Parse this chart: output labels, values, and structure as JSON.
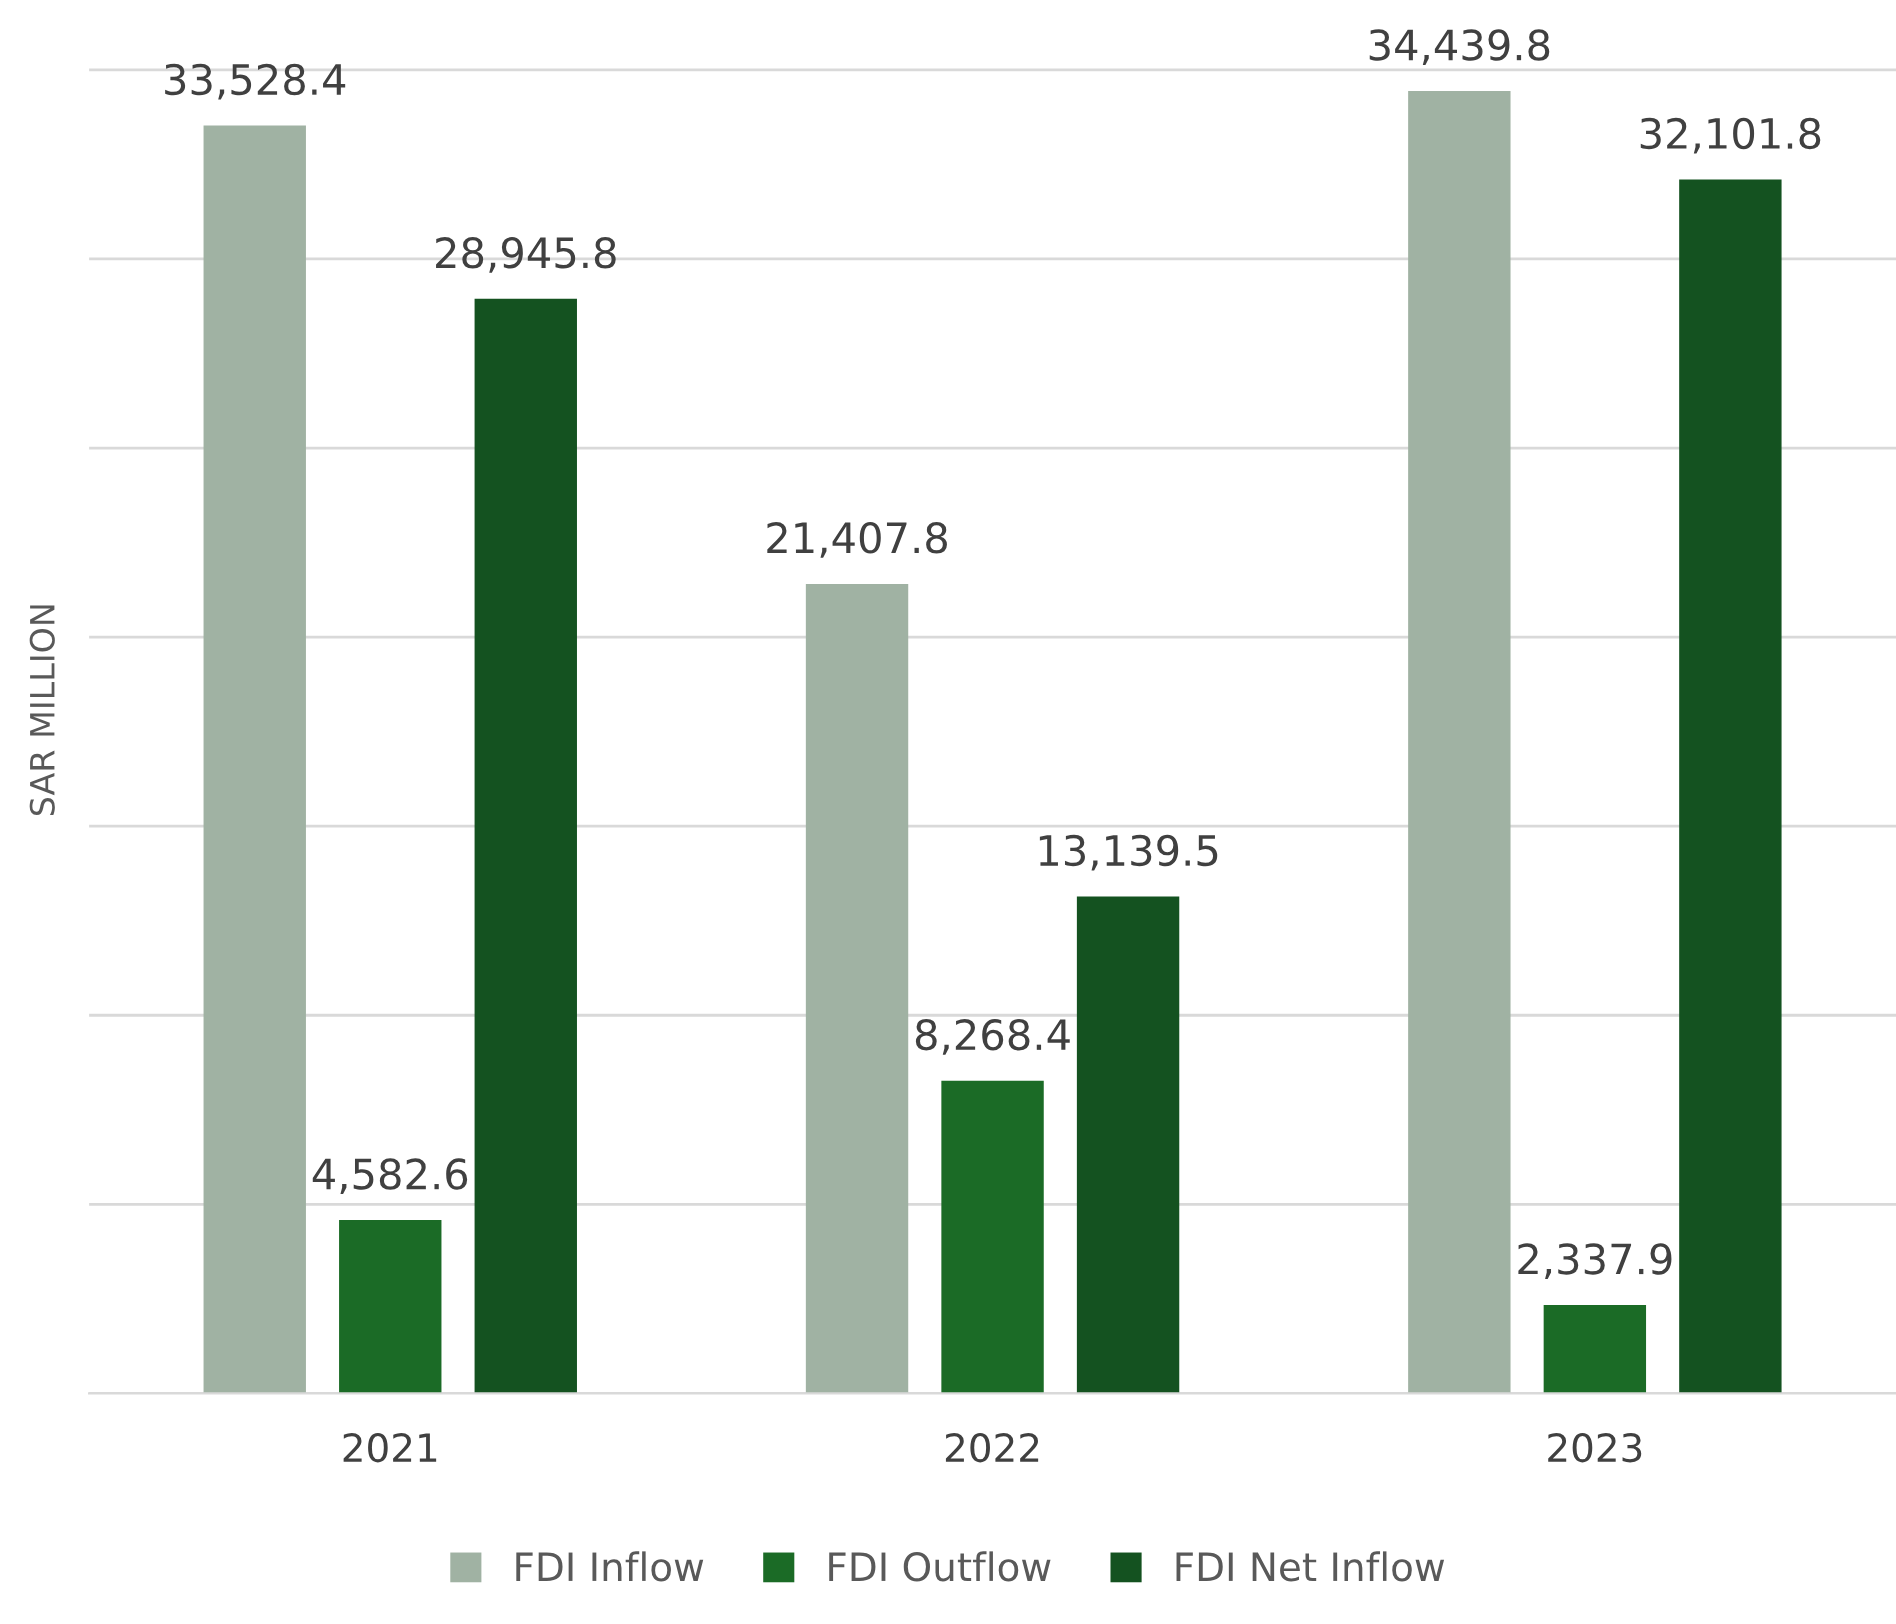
{
  "chart_data": {
    "type": "bar",
    "ylabel": "SAR MILLION",
    "categories": [
      "2021",
      "2022",
      "2023"
    ],
    "series": [
      {
        "name": "FDI Inflow",
        "color": "#a0b2a3",
        "values": [
          33528.4,
          21407.8,
          34439.8
        ],
        "value_labels": [
          "33,528.4",
          "21,407.8",
          "34,439.8"
        ]
      },
      {
        "name": "FDI Outflow",
        "color": "#1b6b26",
        "values": [
          4582.6,
          8268.4,
          2337.9
        ],
        "value_labels": [
          "4,582.6",
          "8,268.4",
          "2,337.9"
        ]
      },
      {
        "name": "FDI Net Inflow",
        "color": "#145220",
        "values": [
          28945.8,
          13139.5,
          32101.8
        ],
        "value_labels": [
          "28,945.8",
          "13,139.5",
          "32,101.8"
        ]
      }
    ],
    "tick_labels": "x",
    "grid": "y",
    "legend": "bottom"
  }
}
